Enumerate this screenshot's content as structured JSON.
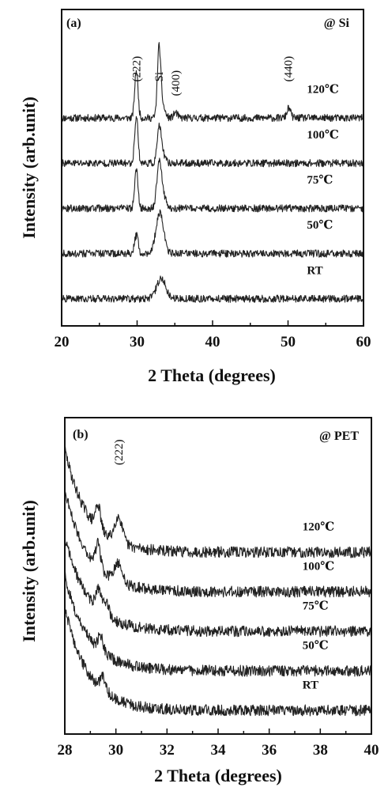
{
  "chart_data": [
    {
      "type": "line",
      "panel_label": "(a)",
      "substrate_label": "@ Si",
      "xlabel": "2 Theta (degrees)",
      "ylabel": "Intensity (arb.unit)",
      "xlim": [
        20,
        60
      ],
      "xticks": [
        20,
        30,
        40,
        50,
        60
      ],
      "peak_labels": [
        {
          "text": "(222)",
          "x": 29.9
        },
        {
          "text": "Si",
          "x": 32.9
        },
        {
          "text": "(400)",
          "x": 35.1
        },
        {
          "text": "(440)",
          "x": 50.0
        }
      ],
      "series": [
        {
          "name": "120℃",
          "baseline": 4.0,
          "noise": 0.08,
          "label_x": 52.5,
          "peaks": [
            {
              "x": 29.9,
              "h": 1.05,
              "w": 0.22
            },
            {
              "x": 32.9,
              "h": 1.45,
              "w": 0.22
            },
            {
              "x": 33.3,
              "h": 0.3,
              "w": 0.35
            },
            {
              "x": 35.1,
              "h": 0.12,
              "w": 0.25
            },
            {
              "x": 50.1,
              "h": 0.22,
              "w": 0.25
            }
          ]
        },
        {
          "name": "100℃",
          "baseline": 3.0,
          "noise": 0.08,
          "label_x": 52.5,
          "peaks": [
            {
              "x": 29.9,
              "h": 1.05,
              "w": 0.22
            },
            {
              "x": 32.9,
              "h": 0.7,
              "w": 0.25
            },
            {
              "x": 33.3,
              "h": 0.25,
              "w": 0.35
            }
          ]
        },
        {
          "name": "75℃",
          "baseline": 2.0,
          "noise": 0.08,
          "label_x": 52.5,
          "peaks": [
            {
              "x": 29.9,
              "h": 0.85,
              "w": 0.22
            },
            {
              "x": 32.9,
              "h": 0.9,
              "w": 0.3
            },
            {
              "x": 33.4,
              "h": 0.3,
              "w": 0.4
            }
          ]
        },
        {
          "name": "50℃",
          "baseline": 1.0,
          "noise": 0.08,
          "label_x": 52.5,
          "peaks": [
            {
              "x": 29.9,
              "h": 0.4,
              "w": 0.25
            },
            {
              "x": 33.0,
              "h": 0.9,
              "w": 0.5
            }
          ]
        },
        {
          "name": "RT",
          "baseline": 0.0,
          "noise": 0.08,
          "label_x": 52.5,
          "peaks": [
            {
              "x": 33.2,
              "h": 0.45,
              "w": 0.6
            }
          ]
        }
      ]
    },
    {
      "type": "line",
      "panel_label": "(b)",
      "substrate_label": "@ PET",
      "xlabel": "2 Theta (degrees)",
      "ylabel": "Intensity (arb.unit)",
      "xlim": [
        28,
        40
      ],
      "xticks": [
        28,
        30,
        32,
        34,
        36,
        38,
        40
      ],
      "peak_labels": [
        {
          "text": "(222)",
          "x": 30.1
        }
      ],
      "series": [
        {
          "name": "120℃",
          "baseline": 4.0,
          "noise": 0.14,
          "label_x": 37.3,
          "decay_amp": 2.6,
          "decay_tau": 0.9,
          "peaks": [
            {
              "x": 29.3,
              "h": 0.6,
              "w": 0.1
            },
            {
              "x": 30.1,
              "h": 0.65,
              "w": 0.15
            }
          ]
        },
        {
          "name": "100℃",
          "baseline": 3.0,
          "noise": 0.14,
          "label_x": 37.3,
          "decay_amp": 2.6,
          "decay_tau": 0.9,
          "peaks": [
            {
              "x": 29.3,
              "h": 0.6,
              "w": 0.1
            },
            {
              "x": 30.1,
              "h": 0.45,
              "w": 0.15
            }
          ]
        },
        {
          "name": "75℃",
          "baseline": 2.0,
          "noise": 0.14,
          "label_x": 37.3,
          "decay_amp": 2.4,
          "decay_tau": 0.9,
          "peaks": [
            {
              "x": 29.3,
              "h": 0.5,
              "w": 0.1
            },
            {
              "x": 29.6,
              "h": 0.35,
              "w": 0.12
            }
          ]
        },
        {
          "name": "50℃",
          "baseline": 1.0,
          "noise": 0.14,
          "label_x": 37.3,
          "decay_amp": 2.4,
          "decay_tau": 0.9,
          "peaks": [
            {
              "x": 29.4,
              "h": 0.4,
              "w": 0.1
            }
          ]
        },
        {
          "name": "RT",
          "baseline": 0.0,
          "noise": 0.14,
          "label_x": 37.3,
          "decay_amp": 2.6,
          "decay_tau": 0.9,
          "peaks": [
            {
              "x": 29.5,
              "h": 0.35,
              "w": 0.12
            }
          ]
        }
      ]
    }
  ]
}
